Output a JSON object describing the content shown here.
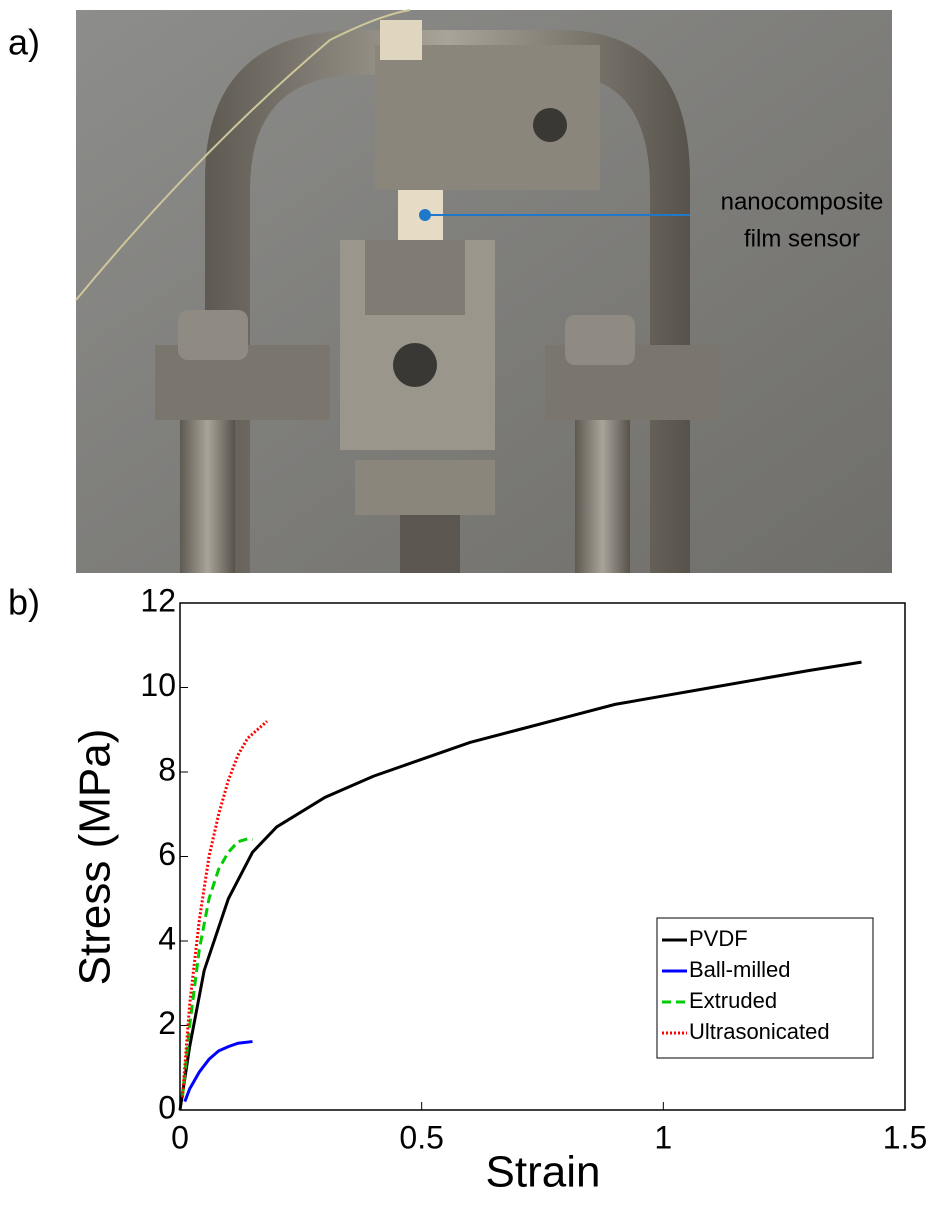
{
  "photo": {
    "label": "a)",
    "annotation": [
      "nanocomposite",
      "film sensor"
    ]
  },
  "chart_data": {
    "type": "line",
    "label": "b)",
    "xlabel": "Strain",
    "ylabel": "Stress (MPa)",
    "xlim": [
      0,
      1.5
    ],
    "ylim": [
      0,
      12
    ],
    "xticks": [
      0,
      0.5,
      1,
      1.5
    ],
    "yticks": [
      0,
      2,
      4,
      6,
      8,
      10,
      12
    ],
    "legend_loc": "lower right",
    "series": [
      {
        "name": "PVDF",
        "color": "#000000",
        "dash": "solid",
        "x": [
          0,
          0.02,
          0.05,
          0.1,
          0.15,
          0.2,
          0.3,
          0.4,
          0.5,
          0.6,
          0.7,
          0.8,
          0.9,
          1.0,
          1.1,
          1.2,
          1.3,
          1.41
        ],
        "values": [
          0,
          1.5,
          3.3,
          5.0,
          6.1,
          6.7,
          7.4,
          7.9,
          8.3,
          8.7,
          9.0,
          9.3,
          9.6,
          9.8,
          10.0,
          10.2,
          10.4,
          10.6
        ]
      },
      {
        "name": "Ball-milled",
        "color": "#0000ff",
        "dash": "solid",
        "x": [
          0.01,
          0.02,
          0.04,
          0.06,
          0.08,
          0.1,
          0.12,
          0.15
        ],
        "values": [
          0.2,
          0.5,
          0.9,
          1.2,
          1.4,
          1.5,
          1.58,
          1.62
        ]
      },
      {
        "name": "Extruded",
        "color": "#00cc00",
        "dash": "dashed",
        "x": [
          0.005,
          0.02,
          0.04,
          0.06,
          0.08,
          0.1,
          0.12,
          0.14,
          0.15
        ],
        "values": [
          0.3,
          2,
          3.8,
          5,
          5.7,
          6.1,
          6.35,
          6.42,
          6.4
        ]
      },
      {
        "name": "Ultrasonicated",
        "color": "#ff0000",
        "dash": "dotted",
        "x": [
          0.005,
          0.02,
          0.04,
          0.06,
          0.08,
          0.1,
          0.12,
          0.14,
          0.16,
          0.18
        ],
        "values": [
          0.3,
          2.5,
          4.5,
          6,
          7,
          7.8,
          8.4,
          8.8,
          9.0,
          9.2
        ]
      }
    ]
  }
}
